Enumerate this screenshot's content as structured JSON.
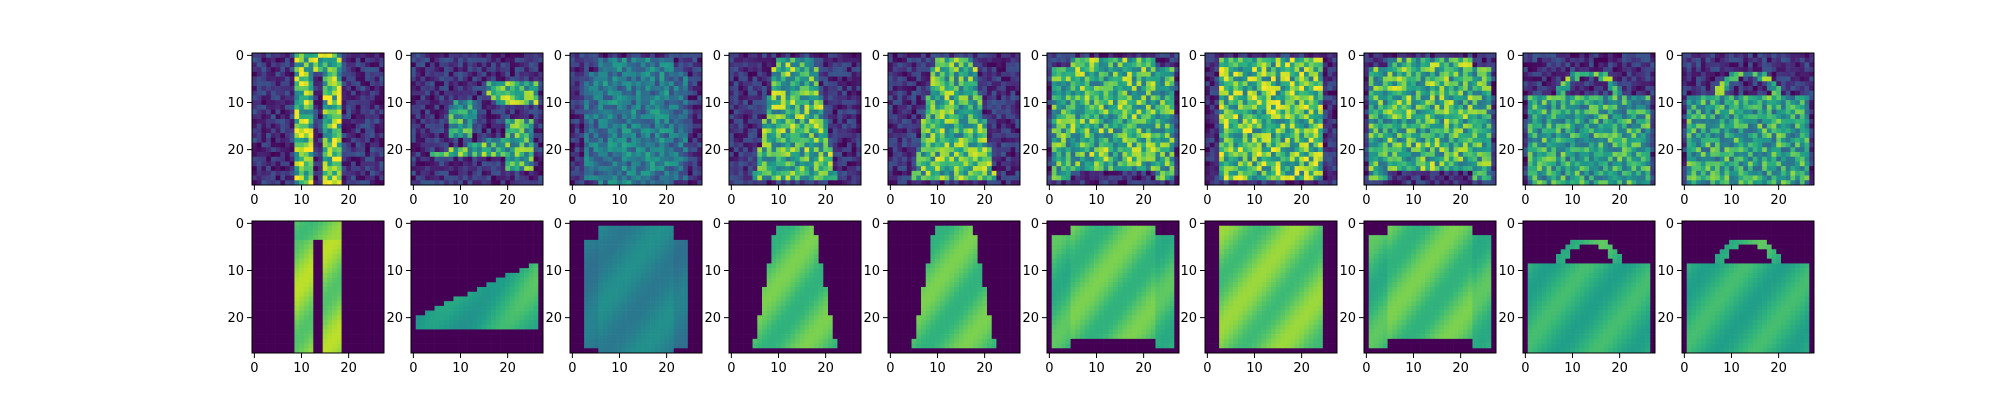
{
  "chart_data": {
    "type": "heatmap",
    "colormap": "viridis",
    "layout": "2 rows x 10 columns of 28x28 image panels",
    "rows": [
      {
        "panels": [
          "trouser",
          "sandal",
          "coat",
          "dress",
          "dress",
          "pullover",
          "shirt",
          "pullover",
          "bag",
          "bag"
        ],
        "noisy": true
      },
      {
        "panels": [
          "trouser",
          "sneaker",
          "coat",
          "dress",
          "dress",
          "pullover",
          "shirt",
          "pullover",
          "bag",
          "bag"
        ],
        "noisy": false
      }
    ],
    "xlim": [
      0,
      27
    ],
    "ylim": [
      27,
      0
    ],
    "xticks": [
      "0",
      "10",
      "20"
    ],
    "yticks": [
      "0",
      "10",
      "20"
    ],
    "colors": {
      "low": "#440154",
      "mid": "#21918c",
      "high": "#fde725"
    }
  }
}
